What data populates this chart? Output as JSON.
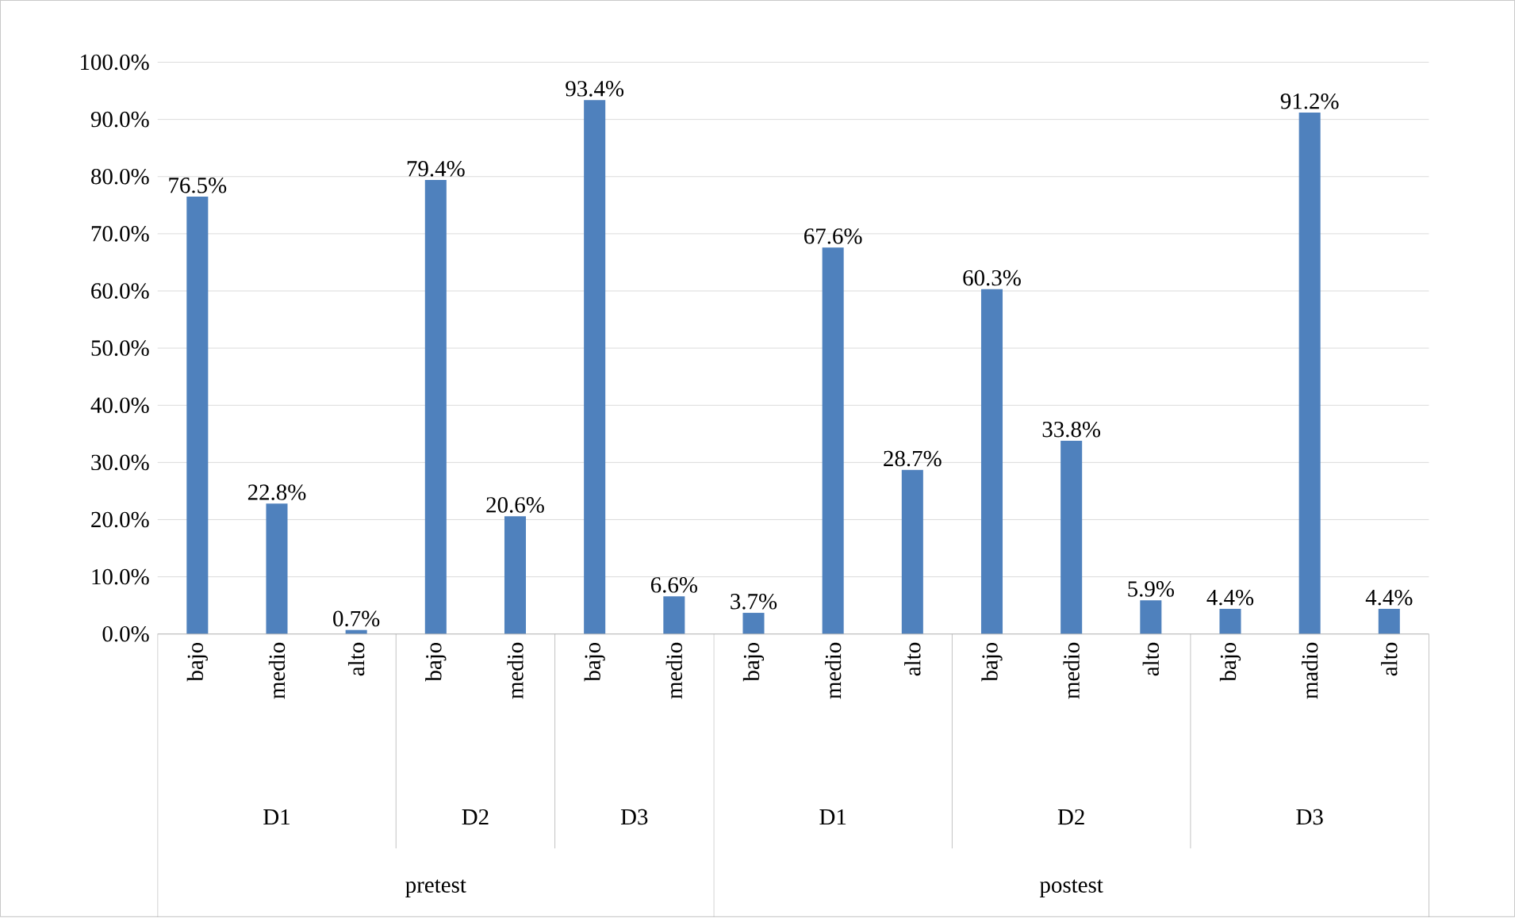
{
  "chart_data": {
    "type": "bar",
    "categories": [
      "bajo",
      "medio",
      "alto",
      "bajo",
      "medio",
      "bajo",
      "medio",
      "bajo",
      "medio",
      "alto",
      "bajo",
      "medio",
      "alto",
      "bajo",
      "madio",
      "alto"
    ],
    "values": [
      76.5,
      22.8,
      0.7,
      79.4,
      20.6,
      93.4,
      6.6,
      3.7,
      67.6,
      28.7,
      60.3,
      33.8,
      5.9,
      4.4,
      91.2,
      4.4
    ],
    "value_labels": [
      "76.5%",
      "22.8%",
      "0.7%",
      "79.4%",
      "20.6%",
      "93.4%",
      "6.6%",
      "3.7%",
      "67.6%",
      "28.7%",
      "60.3%",
      "33.8%",
      "5.9%",
      "4.4%",
      "91.2%",
      "4.4%"
    ],
    "color": "#4f81bd",
    "ylim": [
      0,
      100
    ],
    "yticks": [
      {
        "value": 0,
        "label": "0.0%"
      },
      {
        "value": 10,
        "label": "10.0%"
      },
      {
        "value": 20,
        "label": "20.0%"
      },
      {
        "value": 30,
        "label": "30.0%"
      },
      {
        "value": 40,
        "label": "40.0%"
      },
      {
        "value": 50,
        "label": "50.0%"
      },
      {
        "value": 60,
        "label": "60.0%"
      },
      {
        "value": 70,
        "label": "70.0%"
      },
      {
        "value": 80,
        "label": "80.0%"
      },
      {
        "value": 90,
        "label": "90.0%"
      },
      {
        "value": 100,
        "label": "100.0%"
      }
    ],
    "grid": "y",
    "annotations": [
      "D1",
      "D2",
      "D3",
      "D1",
      "D2",
      "D3",
      "pretest",
      "postest"
    ]
  }
}
